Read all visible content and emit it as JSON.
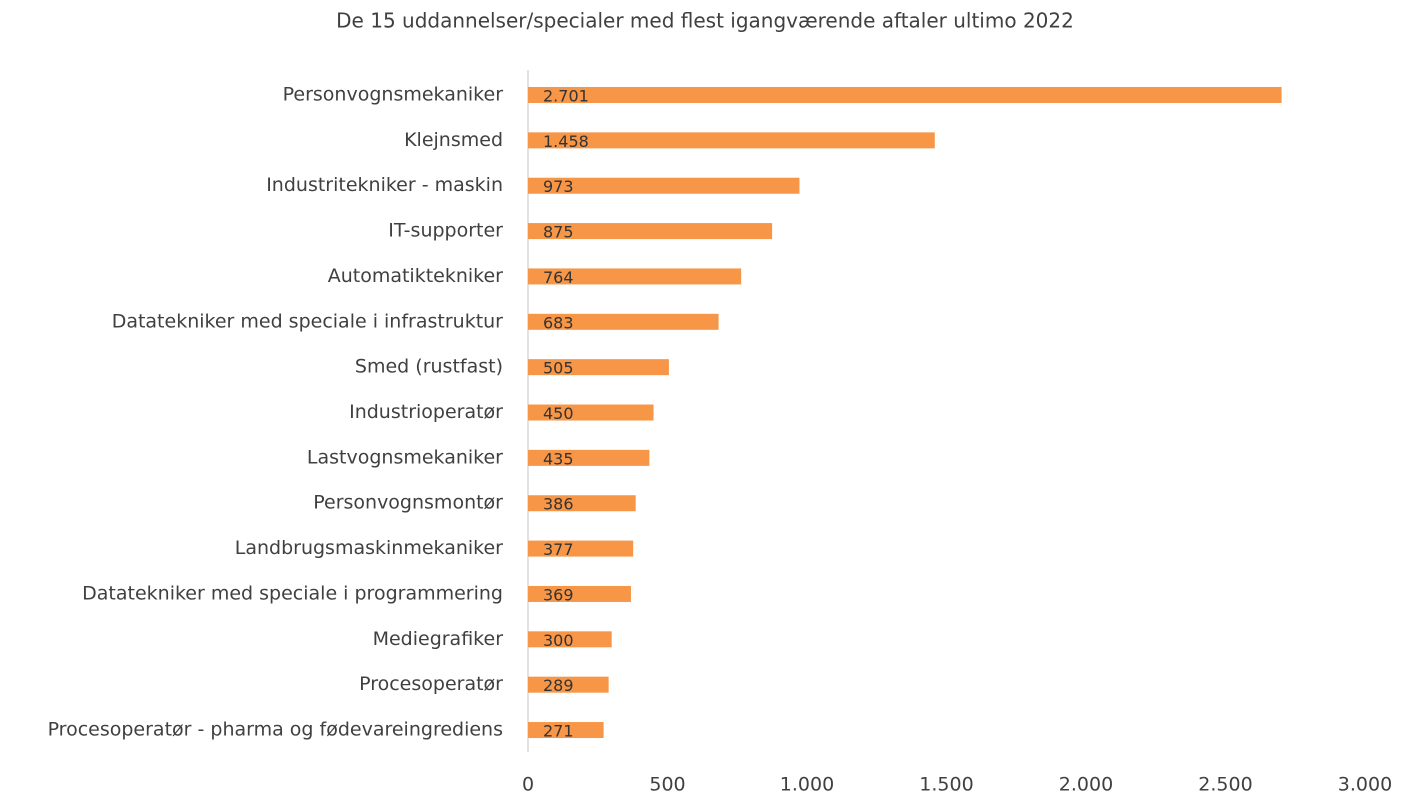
{
  "chart_data": {
    "type": "bar",
    "orientation": "horizontal",
    "title": "De 15 uddannelser/specialer med flest igangværende aftaler ultimo 2022",
    "categories": [
      "Personvognsmekaniker",
      "Klejnsmed",
      "Industritekniker - maskin",
      "IT-supporter",
      "Automatiktekniker",
      "Datatekniker med speciale i infrastruktur",
      "Smed (rustfast)",
      "Industrioperatør",
      "Lastvognsmekaniker",
      "Personvognsmontør",
      "Landbrugsmaskinmekaniker",
      "Datatekniker med speciale i programmering",
      "Mediegrafiker",
      "Procesoperatør",
      "Procesoperatør - pharma og fødevareingrediens"
    ],
    "values": [
      2701,
      1458,
      973,
      875,
      764,
      683,
      505,
      450,
      435,
      386,
      377,
      369,
      300,
      289,
      271
    ],
    "value_labels": [
      "2.701",
      "1.458",
      "973",
      "875",
      "764",
      "683",
      "505",
      "450",
      "435",
      "386",
      "377",
      "369",
      "300",
      "289",
      "271"
    ],
    "color": "#f79646",
    "xlim": [
      0,
      3000
    ],
    "xticks": [
      0,
      500,
      {
        "value": 1000,
        "label": "1.000"
      },
      {
        "value": 1500,
        "label": "1.500"
      },
      {
        "value": 2000,
        "label": "2.000"
      },
      {
        "value": 2500,
        "label": "2.500"
      },
      {
        "value": 3000,
        "label": "3.000"
      }
    ],
    "grid": false
  }
}
